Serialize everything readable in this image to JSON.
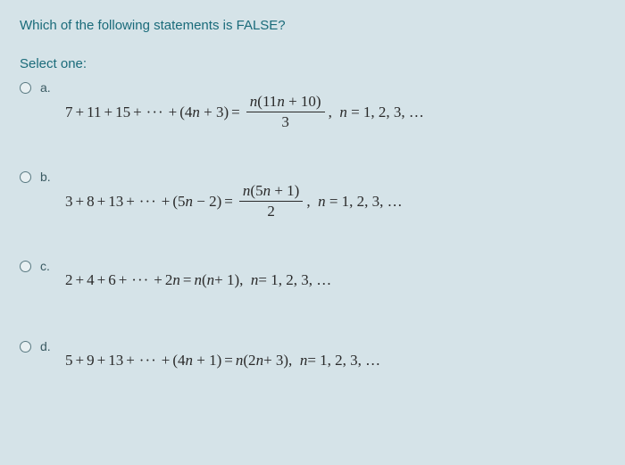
{
  "background_color": "#d5e3e8",
  "text_color_heading": "#1a6b7a",
  "text_color_formula": "#2a2a2a",
  "font_family_ui": "Arial, sans-serif",
  "font_family_math": "Georgia, 'Times New Roman', serif",
  "question_text": "Which of the following statements is FALSE?",
  "select_label": "Select one:",
  "options": [
    {
      "letter": "a.",
      "lhs_first": "7",
      "lhs_terms": [
        "11",
        "15"
      ],
      "lhs_last_coef": "4",
      "lhs_last_const": "3",
      "lhs_last_op": "+",
      "rhs_num_inner_coef": "11",
      "rhs_num_inner_const": "10",
      "rhs_den": "3",
      "has_fraction": true,
      "tail": ",  n = 1, 2, 3, …"
    },
    {
      "letter": "b.",
      "lhs_first": "3",
      "lhs_terms": [
        "8",
        "13"
      ],
      "lhs_last_coef": "5",
      "lhs_last_const": "2",
      "lhs_last_op": "−",
      "rhs_num_inner_coef": "5",
      "rhs_num_inner_const": "1",
      "rhs_den": "2",
      "has_fraction": true,
      "tail": ",  n = 1, 2, 3, …"
    },
    {
      "letter": "c.",
      "plain_lhs": "2 + 4 + 6 + ··· + 2n",
      "plain_rhs": "n(n + 1)",
      "has_fraction": false,
      "tail": ",  n = 1, 2, 3, …"
    },
    {
      "letter": "d.",
      "lhs_first": "5",
      "lhs_terms": [
        "9",
        "13"
      ],
      "lhs_last_coef": "4",
      "lhs_last_const": "1",
      "lhs_last_op": "+",
      "rhs_plain": "n(2n + 3)",
      "has_fraction": false,
      "tail": ",  n = 1, 2, 3, …"
    }
  ]
}
